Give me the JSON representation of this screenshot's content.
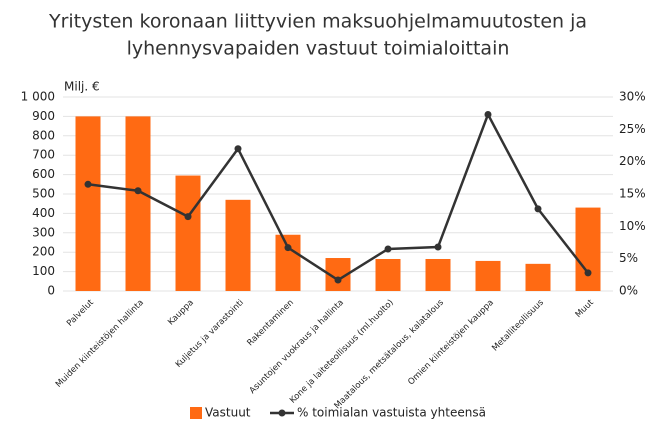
{
  "chart_data": {
    "type": "bar",
    "title": [
      "Yritysten koronaan liittyvien maksuohjelmamuutosten ja",
      "lyhennysvapaiden vastuut toimialoittain"
    ],
    "y_unit_label": "Milj. €",
    "categories": [
      "Palvelut",
      "Muiden kiinteistöjen hallinta",
      "Kauppa",
      "Kuljetus ja varastointi",
      "Rakentaminen",
      "Asuntojen vuokraus ja hallinta",
      "Kone ja laiteteollisuus (ml.huolto)",
      "Maatalous, metsätalous, kalatalous",
      "Omien kiinteistöjen kauppa",
      "Metalliteollisuus",
      "Muut"
    ],
    "series": [
      {
        "name": "Vastuut",
        "color": "#ff6a13",
        "values": [
          900,
          900,
          595,
          470,
          290,
          170,
          165,
          165,
          155,
          140,
          430
        ]
      },
      {
        "name": "% toimialan vastuista yhteensä",
        "color": "#333333",
        "axis": "y2",
        "values": [
          16.5,
          15.5,
          11.5,
          22,
          6.7,
          1.7,
          6.5,
          6.8,
          27.3,
          12.7,
          2.8
        ]
      }
    ],
    "ylim": [
      0,
      1000
    ],
    "yticks": [
      0,
      100,
      200,
      300,
      400,
      500,
      600,
      700,
      800,
      900,
      {
        "value": 1000,
        "label": "1 000"
      }
    ],
    "y2lim": [
      0,
      30
    ],
    "y2ticks": [
      {
        "value": 0,
        "label": "0%"
      },
      {
        "value": 5,
        "label": "5%"
      },
      {
        "value": 10,
        "label": "10%"
      },
      {
        "value": 15,
        "label": "15%"
      },
      {
        "value": 20,
        "label": "20%"
      },
      {
        "value": 25,
        "label": "25%"
      },
      {
        "value": 30,
        "label": "30%"
      }
    ],
    "grid": true
  }
}
